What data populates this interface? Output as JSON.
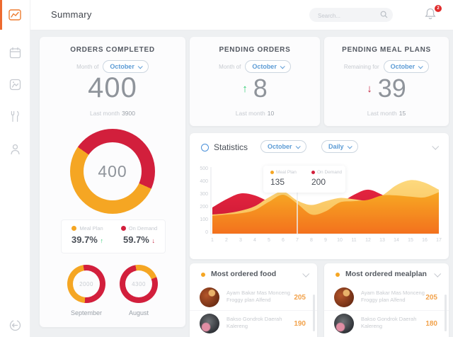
{
  "topbar": {
    "title": "Summary",
    "search_placeholder": "Search...",
    "notification_badge": "2"
  },
  "sidebar": {
    "icons": [
      "dashboard-icon",
      "calendar-icon",
      "gallery-icon",
      "cutlery-icon",
      "user-icon",
      "logout-icon"
    ]
  },
  "cards": {
    "orders_completed": {
      "title": "ORDERS COMPLETED",
      "filter_label": "Month of",
      "month": "October",
      "value": "400",
      "last_month_label": "Last month",
      "last_month": "3900",
      "donut_center": "400",
      "donut_ring": {
        "from_deg": 305,
        "segments": [
          {
            "color": "#d21f3c",
            "pct": 47
          },
          {
            "color": "#f5a623",
            "pct": 53
          }
        ]
      },
      "legend": {
        "meal_plan_label": "Meal Plan",
        "meal_plan_pct": "39.7%",
        "meal_plan_trend": "up",
        "on_demand_label": "On Demand",
        "on_demand_pct": "59.7%",
        "on_demand_trend": "down"
      },
      "history": [
        {
          "label": "September",
          "value": "2000",
          "ring": {
            "from_deg": 185,
            "segments": [
              {
                "color": "#f5a623",
                "pct": 46
              },
              {
                "color": "#d21f3c",
                "pct": 54
              }
            ]
          }
        },
        {
          "label": "August",
          "value": "4300",
          "ring": {
            "from_deg": 350,
            "segments": [
              {
                "color": "#f5a623",
                "pct": 22
              },
              {
                "color": "#d21f3c",
                "pct": 78
              }
            ]
          }
        }
      ]
    },
    "pending_orders": {
      "title": "PENDING ORDERS",
      "filter_label": "Month of",
      "month": "October",
      "value": "8",
      "trend": "up",
      "last_month_label": "Last month",
      "last_month": "10"
    },
    "pending_meal_plans": {
      "title": "PENDING MEAL PLANS",
      "filter_label": "Remaining for",
      "month": "October",
      "value": "39",
      "trend": "down",
      "last_month_label": "Last month",
      "last_month": "15"
    }
  },
  "statistics": {
    "title": "Statistics",
    "month_filter": "October",
    "period_filter": "Daily",
    "tooltip": {
      "meal_plan_label": "Meal Plan",
      "meal_plan_value": "135",
      "on_demand_label": "On Demand",
      "on_demand_value": "200"
    },
    "chart_data": {
      "type": "area",
      "title": "Statistics",
      "x": [
        1,
        2,
        3,
        4,
        5,
        6,
        7,
        8,
        9,
        10,
        11,
        12,
        13,
        14,
        15,
        16,
        17
      ],
      "series": [
        {
          "name": "On Demand",
          "fill": "g-red",
          "values": [
            205,
            270,
            315,
            300,
            250,
            205,
            175,
            150,
            165,
            235,
            305,
            345,
            305,
            250,
            205,
            185,
            175
          ]
        },
        {
          "name": "Highlight",
          "fill": "g-yellow",
          "values": [
            150,
            160,
            180,
            215,
            285,
            330,
            260,
            225,
            255,
            280,
            270,
            260,
            300,
            380,
            420,
            400,
            345
          ]
        },
        {
          "name": "Meal Plan",
          "fill": "g-orange",
          "values": [
            140,
            150,
            160,
            185,
            250,
            305,
            235,
            150,
            175,
            245,
            255,
            265,
            300,
            300,
            290,
            285,
            325
          ]
        }
      ],
      "legend": [
        "Meal Plan",
        "On Demand"
      ],
      "ylim": [
        0,
        500
      ],
      "y_ticks": [
        500,
        400,
        300,
        200,
        100,
        0
      ],
      "indicator_x": 7,
      "grid": false,
      "legend_position": "tooltip-top"
    }
  },
  "lists": {
    "food": {
      "title": "Most ordered food",
      "items": [
        {
          "name": "Ayam Bakar Mas Monceng",
          "desc": "Froggy plan Alfend",
          "value": "205"
        },
        {
          "name": "Bakso Gondrok Daerah",
          "desc": "Kalereng",
          "value": "190"
        }
      ]
    },
    "mealplan": {
      "title": "Most ordered mealplan",
      "items": [
        {
          "name": "Ayam Bakar Mas Monceng",
          "desc": "Froggy plan Alfend",
          "value": "205"
        },
        {
          "name": "Bakso Gondrok Daerah",
          "desc": "Kalereng",
          "value": "180"
        }
      ]
    }
  },
  "colors": {
    "accent_orange": "#f5a623",
    "accent_red": "#d21f3c",
    "accent_green": "#2ecc71",
    "link_blue": "#5b9bd5"
  }
}
